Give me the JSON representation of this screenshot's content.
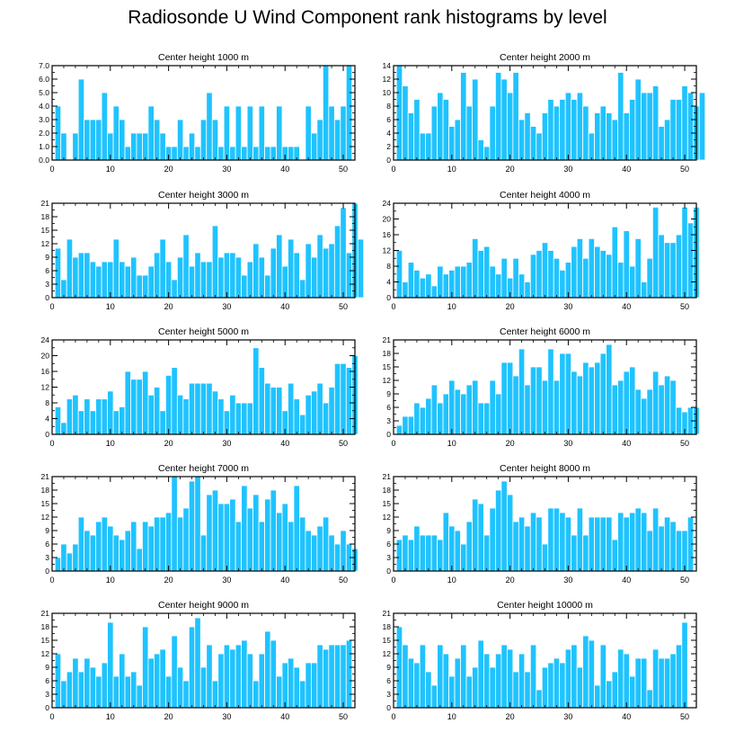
{
  "title": "Radiosonde U Wind Component rank histograms by level",
  "colors": {
    "bar": "#1fc3ff",
    "bar_edge": "#ffffff",
    "axis": "#000000",
    "background": "#ffffff"
  },
  "chart_data": [
    {
      "type": "bar",
      "title": "Center height 1000 m",
      "xlim": [
        0,
        52
      ],
      "ylim": [
        0,
        7
      ],
      "xticks": [
        0,
        10,
        20,
        30,
        40,
        50
      ],
      "yticks": [
        0,
        1,
        2,
        3,
        4,
        5,
        6,
        7
      ],
      "ytick_labels": [
        "0.0",
        "1.0",
        "2.0",
        "3.0",
        "4.0",
        "5.0",
        "6.0",
        "7.0"
      ],
      "values": [
        4,
        2,
        0,
        2,
        6,
        3,
        3,
        3,
        5,
        2,
        4,
        3,
        1,
        2,
        2,
        2,
        4,
        3,
        2,
        1,
        1,
        3,
        1,
        2,
        1,
        3,
        5,
        3,
        1,
        4,
        1,
        4,
        1,
        4,
        1,
        4,
        1,
        1,
        4,
        1,
        1,
        1,
        0,
        4,
        2,
        3,
        7,
        4,
        3,
        4,
        7
      ]
    },
    {
      "type": "bar",
      "title": "Center height 2000 m",
      "xlim": [
        0,
        52
      ],
      "ylim": [
        0,
        14
      ],
      "xticks": [
        0,
        10,
        20,
        30,
        40,
        50
      ],
      "yticks": [
        0,
        2,
        4,
        6,
        8,
        10,
        12,
        14
      ],
      "ytick_labels": [
        "0",
        "2",
        "4",
        "6",
        "8",
        "10",
        "12",
        "14"
      ],
      "values": [
        14,
        11,
        7,
        9,
        4,
        4,
        8,
        10,
        9,
        5,
        6,
        13,
        8,
        12,
        3,
        2,
        8,
        13,
        12,
        10,
        13,
        6,
        7,
        5,
        4,
        7,
        9,
        8,
        9,
        10,
        9,
        10,
        8,
        4,
        7,
        8,
        7,
        6,
        13,
        7,
        9,
        12,
        10,
        10,
        11,
        5,
        6,
        9,
        9,
        11,
        10,
        8,
        10
      ]
    },
    {
      "type": "bar",
      "title": "Center height 3000 m",
      "xlim": [
        0,
        52
      ],
      "ylim": [
        0,
        21
      ],
      "xticks": [
        0,
        10,
        20,
        30,
        40,
        50
      ],
      "yticks": [
        0,
        3,
        6,
        9,
        12,
        15,
        18,
        21
      ],
      "ytick_labels": [
        "0",
        "3",
        "6",
        "9",
        "12",
        "15",
        "18",
        "21"
      ],
      "values": [
        11,
        4,
        13,
        9,
        10,
        10,
        8,
        7,
        8,
        8,
        13,
        8,
        7,
        9,
        5,
        5,
        7,
        10,
        13,
        8,
        4,
        9,
        14,
        7,
        10,
        8,
        8,
        16,
        9,
        10,
        10,
        9,
        5,
        8,
        12,
        9,
        5,
        11,
        14,
        7,
        13,
        10,
        4,
        12,
        9,
        14,
        11,
        12,
        16,
        20,
        10,
        21,
        13
      ]
    },
    {
      "type": "bar",
      "title": "Center height 4000 m",
      "xlim": [
        0,
        52
      ],
      "ylim": [
        0,
        24
      ],
      "xticks": [
        0,
        10,
        20,
        30,
        40,
        50
      ],
      "yticks": [
        0,
        4,
        8,
        12,
        16,
        20,
        24
      ],
      "ytick_labels": [
        "0",
        "4",
        "8",
        "12",
        "16",
        "20",
        "24"
      ],
      "values": [
        12,
        4,
        9,
        7,
        5,
        6,
        3,
        8,
        6,
        7,
        8,
        8,
        9,
        15,
        12,
        13,
        8,
        6,
        10,
        5,
        10,
        6,
        4,
        11,
        12,
        14,
        12,
        10,
        7,
        9,
        13,
        15,
        10,
        15,
        13,
        12,
        11,
        18,
        9,
        17,
        8,
        15,
        4,
        10,
        23,
        16,
        14,
        14,
        16,
        23,
        19,
        23
      ]
    },
    {
      "type": "bar",
      "title": "Center height 5000 m",
      "xlim": [
        0,
        52
      ],
      "ylim": [
        0,
        24
      ],
      "xticks": [
        0,
        10,
        20,
        30,
        40,
        50
      ],
      "yticks": [
        0,
        4,
        8,
        12,
        16,
        20,
        24
      ],
      "ytick_labels": [
        "0",
        "4",
        "8",
        "12",
        "16",
        "20",
        "24"
      ],
      "values": [
        7,
        3,
        9,
        10,
        6,
        9,
        6,
        9,
        9,
        11,
        6,
        7,
        16,
        14,
        14,
        16,
        10,
        12,
        6,
        15,
        17,
        10,
        9,
        13,
        13,
        13,
        13,
        11,
        9,
        6,
        10,
        8,
        8,
        8,
        22,
        17,
        13,
        12,
        12,
        6,
        13,
        9,
        5,
        10,
        11,
        13,
        8,
        12,
        18,
        18,
        17,
        20
      ]
    },
    {
      "type": "bar",
      "title": "Center height 6000 m",
      "xlim": [
        0,
        52
      ],
      "ylim": [
        0,
        21
      ],
      "xticks": [
        0,
        10,
        20,
        30,
        40,
        50
      ],
      "yticks": [
        0,
        3,
        6,
        9,
        12,
        15,
        18,
        21
      ],
      "ytick_labels": [
        "0",
        "3",
        "6",
        "9",
        "12",
        "15",
        "18",
        "21"
      ],
      "values": [
        2,
        4,
        4,
        7,
        6,
        8,
        11,
        7,
        9,
        12,
        10,
        9,
        11,
        12,
        7,
        7,
        12,
        9,
        16,
        16,
        13,
        19,
        11,
        15,
        15,
        12,
        19,
        12,
        18,
        18,
        14,
        13,
        16,
        15,
        16,
        18,
        20,
        11,
        12,
        14,
        15,
        10,
        8,
        10,
        14,
        11,
        13,
        12,
        6,
        5,
        6,
        6
      ]
    },
    {
      "type": "bar",
      "title": "Center height 7000 m",
      "xlim": [
        0,
        52
      ],
      "ylim": [
        0,
        21
      ],
      "xticks": [
        0,
        10,
        20,
        30,
        40,
        50
      ],
      "yticks": [
        0,
        3,
        6,
        9,
        12,
        15,
        18,
        21
      ],
      "ytick_labels": [
        "0",
        "3",
        "6",
        "9",
        "12",
        "15",
        "18",
        "21"
      ],
      "values": [
        3,
        6,
        4,
        6,
        12,
        9,
        8,
        11,
        12,
        10,
        8,
        7,
        9,
        11,
        5,
        11,
        10,
        12,
        12,
        13,
        21,
        12,
        14,
        20,
        21,
        8,
        17,
        18,
        15,
        15,
        16,
        11,
        19,
        14,
        17,
        11,
        16,
        18,
        13,
        15,
        11,
        19,
        12,
        9,
        8,
        10,
        12,
        8,
        6,
        9,
        6,
        5
      ]
    },
    {
      "type": "bar",
      "title": "Center height 8000 m",
      "xlim": [
        0,
        52
      ],
      "ylim": [
        0,
        21
      ],
      "xticks": [
        0,
        10,
        20,
        30,
        40,
        50
      ],
      "yticks": [
        0,
        3,
        6,
        9,
        12,
        15,
        18,
        21
      ],
      "ytick_labels": [
        "0",
        "3",
        "6",
        "9",
        "12",
        "15",
        "18",
        "21"
      ],
      "values": [
        7,
        8,
        7,
        10,
        8,
        8,
        8,
        7,
        13,
        10,
        9,
        6,
        11,
        16,
        15,
        8,
        14,
        18,
        20,
        17,
        11,
        12,
        10,
        13,
        12,
        6,
        14,
        14,
        13,
        12,
        8,
        14,
        8,
        12,
        12,
        12,
        12,
        7,
        13,
        12,
        13,
        14,
        13,
        9,
        14,
        10,
        12,
        11,
        9,
        9,
        12
      ]
    },
    {
      "type": "bar",
      "title": "Center height 9000 m",
      "xlim": [
        0,
        52
      ],
      "ylim": [
        0,
        21
      ],
      "xticks": [
        0,
        10,
        20,
        30,
        40,
        50
      ],
      "yticks": [
        0,
        3,
        6,
        9,
        12,
        15,
        18,
        21
      ],
      "ytick_labels": [
        "0",
        "3",
        "6",
        "9",
        "12",
        "15",
        "18",
        "21"
      ],
      "values": [
        12,
        6,
        8,
        11,
        8,
        11,
        9,
        7,
        10,
        19,
        7,
        12,
        7,
        8,
        5,
        18,
        11,
        12,
        13,
        7,
        16,
        9,
        6,
        18,
        20,
        9,
        14,
        6,
        12,
        14,
        13,
        14,
        15,
        12,
        6,
        12,
        17,
        15,
        7,
        10,
        11,
        9,
        6,
        10,
        10,
        14,
        13,
        14,
        14,
        14,
        15
      ]
    },
    {
      "type": "bar",
      "title": "Center height 10000 m",
      "xlim": [
        0,
        52
      ],
      "ylim": [
        0,
        21
      ],
      "xticks": [
        0,
        10,
        20,
        30,
        40,
        50
      ],
      "yticks": [
        0,
        3,
        6,
        9,
        12,
        15,
        18,
        21
      ],
      "ytick_labels": [
        "0",
        "3",
        "6",
        "9",
        "12",
        "15",
        "18",
        "21"
      ],
      "values": [
        18,
        14,
        11,
        10,
        14,
        8,
        5,
        14,
        12,
        7,
        11,
        14,
        7,
        9,
        15,
        12,
        9,
        12,
        14,
        13,
        8,
        12,
        8,
        14,
        4,
        9,
        10,
        11,
        10,
        13,
        14,
        9,
        16,
        15,
        5,
        14,
        6,
        8,
        13,
        12,
        7,
        11,
        11,
        4,
        13,
        11,
        11,
        12,
        14,
        19
      ]
    }
  ]
}
